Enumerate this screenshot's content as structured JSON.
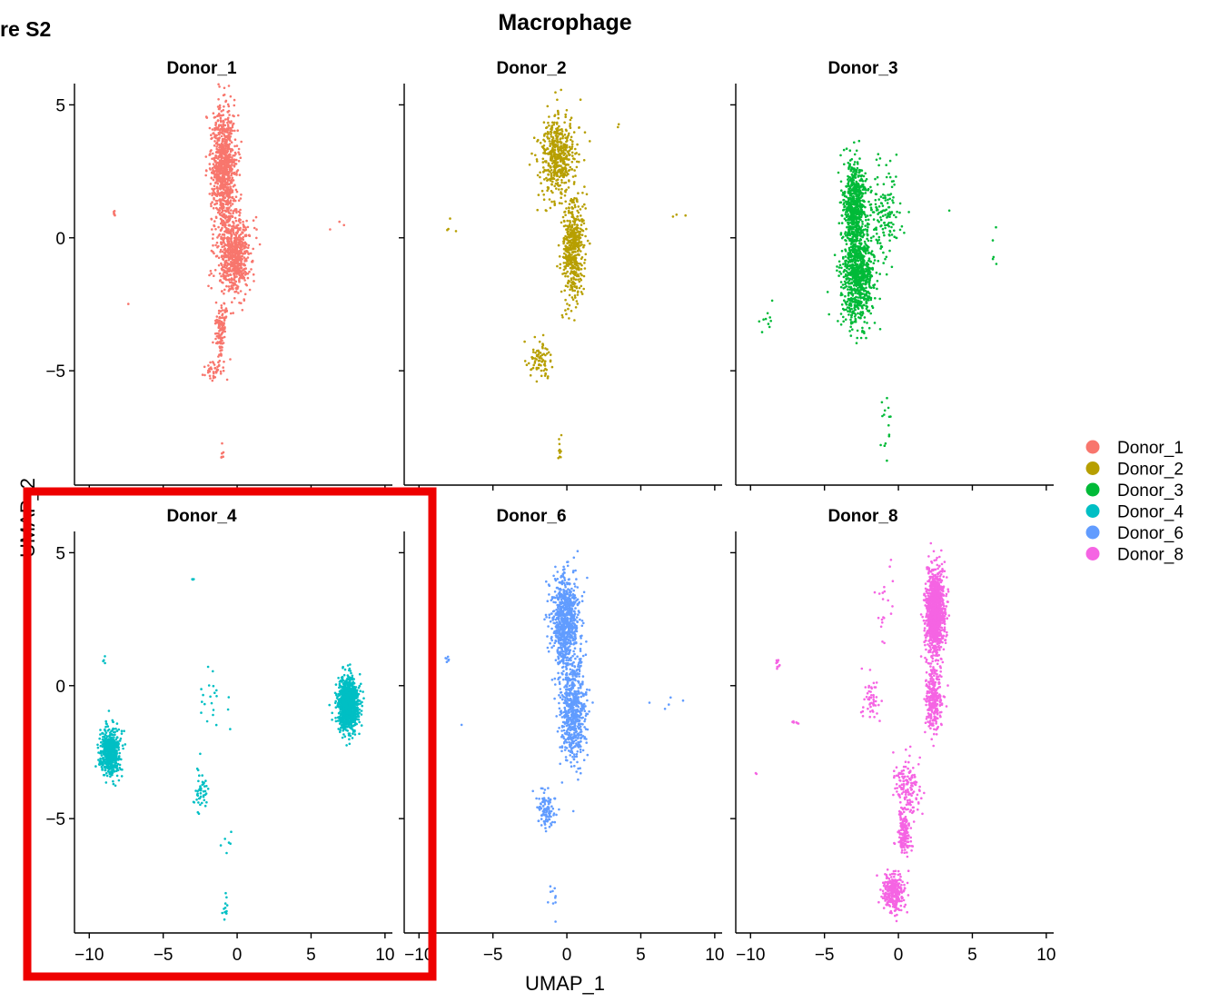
{
  "figure_label": "re S2",
  "chart_data": {
    "type": "scatter",
    "title": "Macrophage",
    "xlabel": "UMAP_1",
    "ylabel": "UMAP_2",
    "xlim": [
      -11,
      10.5
    ],
    "ylim": [
      -9.3,
      5.8
    ],
    "x_ticks": [
      -10,
      -5,
      0,
      5,
      10
    ],
    "y_ticks": [
      5,
      0,
      -5
    ],
    "x_tick_labels": [
      "−10",
      "−5",
      "0",
      "5",
      "10"
    ],
    "y_tick_labels": [
      "5",
      "0",
      "−5"
    ],
    "legend_position": "right",
    "highlight_box_color": "#ee0000",
    "highlighted_panel": "Donor_4",
    "series": [
      {
        "name": "Donor_1",
        "color": "#F8766D",
        "clusters": [
          {
            "x": -0.9,
            "y": 2.6,
            "sx": 0.7,
            "sy": 1.9,
            "n": 900
          },
          {
            "x": -0.2,
            "y": -0.6,
            "sx": 0.9,
            "sy": 1.3,
            "n": 700
          },
          {
            "x": -1.1,
            "y": -3.6,
            "sx": 0.35,
            "sy": 0.9,
            "n": 120
          },
          {
            "x": -1.6,
            "y": -5.0,
            "sx": 0.5,
            "sy": 0.3,
            "n": 40
          },
          {
            "x": -1.0,
            "y": -8.1,
            "sx": 0.1,
            "sy": 0.3,
            "n": 8
          },
          {
            "x": -8.3,
            "y": 0.9,
            "sx": 0.05,
            "sy": 0.08,
            "n": 6
          },
          {
            "x": 6.6,
            "y": 0.5,
            "sx": 0.8,
            "sy": 0.2,
            "n": 3
          },
          {
            "x": -7.3,
            "y": -2.5,
            "sx": 0.1,
            "sy": 0.1,
            "n": 1
          }
        ]
      },
      {
        "name": "Donor_2",
        "color": "#B79F00",
        "clusters": [
          {
            "x": -0.6,
            "y": 3.0,
            "sx": 1.0,
            "sy": 1.3,
            "n": 500
          },
          {
            "x": 0.4,
            "y": -0.4,
            "sx": 0.6,
            "sy": 1.6,
            "n": 500
          },
          {
            "x": -1.8,
            "y": -4.6,
            "sx": 0.7,
            "sy": 0.6,
            "n": 80
          },
          {
            "x": -0.5,
            "y": -8.0,
            "sx": 0.2,
            "sy": 0.4,
            "n": 10
          },
          {
            "x": -8.0,
            "y": 0.3,
            "sx": 0.4,
            "sy": 0.6,
            "n": 4
          },
          {
            "x": 7.5,
            "y": 0.8,
            "sx": 0.5,
            "sy": 0.1,
            "n": 3
          },
          {
            "x": 3.5,
            "y": 4.2,
            "sx": 0.2,
            "sy": 0.1,
            "n": 2
          }
        ]
      },
      {
        "name": "Donor_3",
        "color": "#00BA38",
        "clusters": [
          {
            "x": -3.0,
            "y": 1.2,
            "sx": 0.6,
            "sy": 1.4,
            "n": 600
          },
          {
            "x": -2.8,
            "y": -1.5,
            "sx": 0.9,
            "sy": 1.5,
            "n": 800
          },
          {
            "x": -1.0,
            "y": 1.0,
            "sx": 1.0,
            "sy": 1.6,
            "n": 150
          },
          {
            "x": -0.8,
            "y": -7.0,
            "sx": 0.3,
            "sy": 1.2,
            "n": 15
          },
          {
            "x": -8.9,
            "y": -3.2,
            "sx": 0.5,
            "sy": 0.7,
            "n": 10
          },
          {
            "x": 6.5,
            "y": -0.3,
            "sx": 0.3,
            "sy": 0.5,
            "n": 5
          },
          {
            "x": 3.5,
            "y": 1.0,
            "sx": 0.1,
            "sy": 0.1,
            "n": 1
          }
        ]
      },
      {
        "name": "Donor_4",
        "color": "#00BFC4",
        "clusters": [
          {
            "x": -8.6,
            "y": -2.5,
            "sx": 0.55,
            "sy": 0.75,
            "n": 550
          },
          {
            "x": 7.5,
            "y": -0.7,
            "sx": 0.55,
            "sy": 0.75,
            "n": 1200
          },
          {
            "x": -2.4,
            "y": -4.0,
            "sx": 0.45,
            "sy": 0.5,
            "n": 45
          },
          {
            "x": -1.8,
            "y": -1.0,
            "sx": 1.1,
            "sy": 1.6,
            "n": 22
          },
          {
            "x": -0.8,
            "y": -8.3,
            "sx": 0.15,
            "sy": 0.4,
            "n": 12
          },
          {
            "x": -1.0,
            "y": -6.0,
            "sx": 0.7,
            "sy": 0.7,
            "n": 6
          },
          {
            "x": -9.0,
            "y": 1.0,
            "sx": 0.1,
            "sy": 0.15,
            "n": 4
          },
          {
            "x": -3.0,
            "y": 4.0,
            "sx": 0.1,
            "sy": 0.1,
            "n": 3
          }
        ]
      },
      {
        "name": "Donor_6",
        "color": "#619CFF",
        "clusters": [
          {
            "x": -0.1,
            "y": 2.4,
            "sx": 0.8,
            "sy": 1.5,
            "n": 800
          },
          {
            "x": 0.4,
            "y": -1.0,
            "sx": 0.7,
            "sy": 1.6,
            "n": 600
          },
          {
            "x": -1.4,
            "y": -4.6,
            "sx": 0.5,
            "sy": 0.6,
            "n": 100
          },
          {
            "x": -1.0,
            "y": -8.0,
            "sx": 0.3,
            "sy": 0.5,
            "n": 10
          },
          {
            "x": -8.1,
            "y": 1.0,
            "sx": 0.1,
            "sy": 0.15,
            "n": 6
          },
          {
            "x": 7.4,
            "y": -0.5,
            "sx": 1.0,
            "sy": 0.4,
            "n": 5
          },
          {
            "x": -7.1,
            "y": -1.4,
            "sx": 0.1,
            "sy": 0.1,
            "n": 1
          }
        ]
      },
      {
        "name": "Donor_8",
        "color": "#F564E3",
        "clusters": [
          {
            "x": 2.5,
            "y": 2.8,
            "sx": 0.5,
            "sy": 1.2,
            "n": 1200
          },
          {
            "x": 2.4,
            "y": -0.5,
            "sx": 0.5,
            "sy": 1.0,
            "n": 300
          },
          {
            "x": 0.6,
            "y": -3.8,
            "sx": 0.7,
            "sy": 0.9,
            "n": 150
          },
          {
            "x": 0.4,
            "y": -5.5,
            "sx": 0.35,
            "sy": 0.7,
            "n": 160
          },
          {
            "x": -0.3,
            "y": -7.8,
            "sx": 0.6,
            "sy": 0.6,
            "n": 300
          },
          {
            "x": -1.9,
            "y": -0.5,
            "sx": 0.5,
            "sy": 0.8,
            "n": 50
          },
          {
            "x": -1.0,
            "y": 3.0,
            "sx": 0.5,
            "sy": 1.5,
            "n": 20
          },
          {
            "x": -8.2,
            "y": 0.8,
            "sx": 0.15,
            "sy": 0.2,
            "n": 10
          },
          {
            "x": -7.0,
            "y": -1.4,
            "sx": 0.2,
            "sy": 0.15,
            "n": 6
          },
          {
            "x": -9.5,
            "y": -3.3,
            "sx": 0.2,
            "sy": 0.2,
            "n": 2
          }
        ]
      }
    ]
  }
}
